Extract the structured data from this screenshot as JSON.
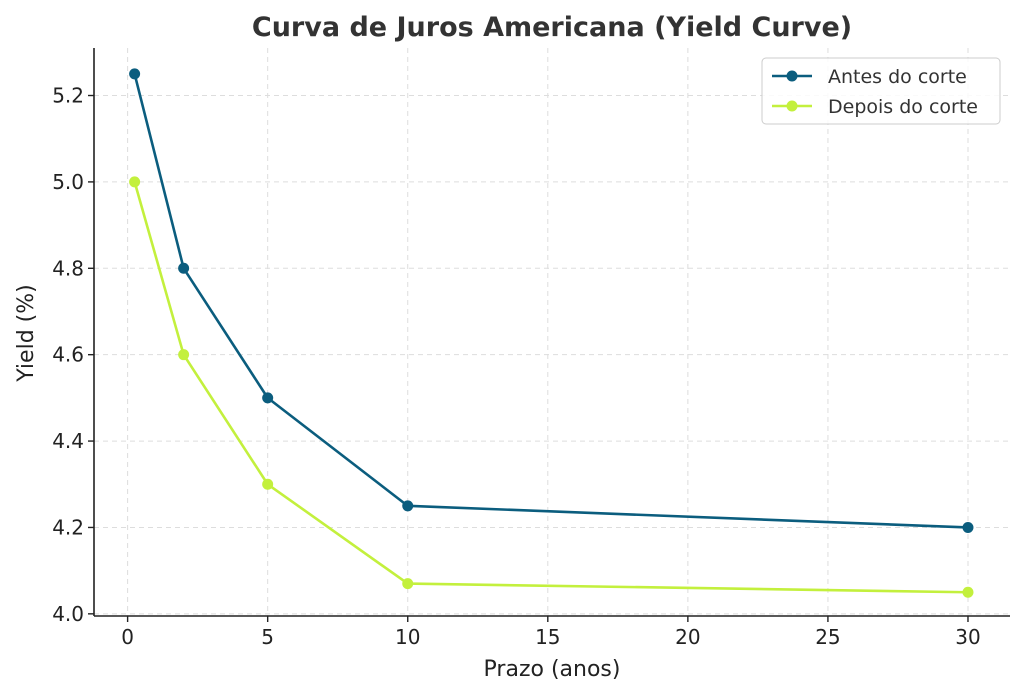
{
  "chart_data": {
    "type": "line",
    "title": "Curva de Juros Americana (Yield Curve)",
    "xlabel": "Prazo (anos)",
    "ylabel": "Yield (%)",
    "xlim": [
      -1.2,
      31.5
    ],
    "ylim": [
      3.995,
      5.31
    ],
    "xticks": [
      0,
      5,
      10,
      15,
      20,
      25,
      30
    ],
    "yticks": [
      4.0,
      4.2,
      4.4,
      4.6,
      4.8,
      5.0,
      5.2
    ],
    "grid": true,
    "legend_position": "top-right",
    "x": [
      0.25,
      2,
      5,
      10,
      30
    ],
    "series": [
      {
        "name": "Antes do corte",
        "color": "#0b5d7e",
        "marker": "circle",
        "values": [
          5.25,
          4.8,
          4.5,
          4.25,
          4.2
        ]
      },
      {
        "name": "Depois do corte",
        "color": "#c3f03d",
        "marker": "circle",
        "values": [
          5.0,
          4.6,
          4.3,
          4.07,
          4.05
        ]
      }
    ]
  }
}
